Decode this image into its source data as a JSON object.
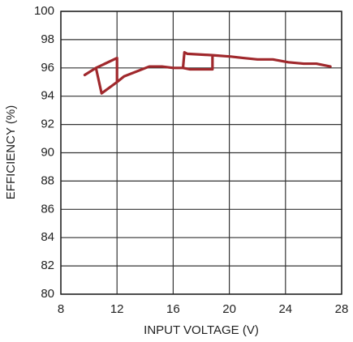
{
  "chart_data": {
    "type": "line",
    "x_label": "INPUT VOLTAGE (V)",
    "y_label": "EFFICIENCY (%)",
    "x": [
      9.7,
      10.5,
      12.0,
      12.0,
      10.9,
      10.5,
      null,
      12.0,
      12.5,
      14.3,
      15.2,
      16.0,
      16.7,
      17.2,
      18.8,
      18.8,
      17.0,
      16.8,
      16.7,
      null,
      18.8,
      20.1,
      21.0,
      22.0,
      23.1,
      24.2,
      25.3,
      26.2,
      27.2
    ],
    "series": [
      {
        "color": "#a0282c",
        "values": [
          95.5,
          96.0,
          96.7,
          95.0,
          94.2,
          96.0,
          null,
          95.0,
          95.4,
          96.1,
          96.1,
          96.0,
          96.0,
          95.9,
          95.9,
          96.9,
          97.0,
          97.1,
          96.0,
          null,
          96.9,
          96.8,
          96.7,
          96.6,
          96.6,
          96.4,
          96.3,
          96.3,
          96.1
        ]
      }
    ],
    "xlim": [
      8,
      28
    ],
    "xticks": [
      8,
      12,
      16,
      20,
      24,
      28
    ],
    "ylim": [
      80,
      100
    ],
    "yticks": [
      80,
      82,
      84,
      86,
      88,
      90,
      92,
      94,
      96,
      98,
      100
    ],
    "grid": true
  }
}
